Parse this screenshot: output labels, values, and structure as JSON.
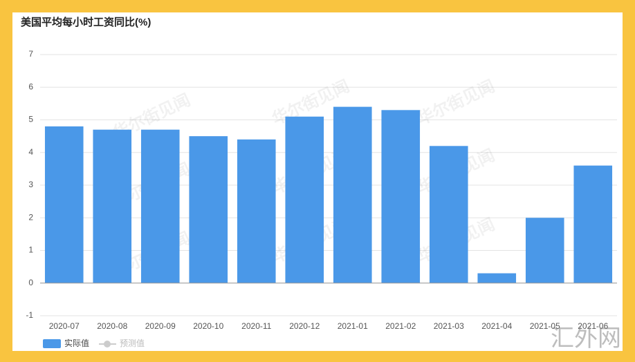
{
  "chart_data": {
    "type": "bar",
    "title": "美国平均每小时工资同比(%)",
    "categories": [
      "2020-07",
      "2020-08",
      "2020-09",
      "2020-10",
      "2020-11",
      "2020-12",
      "2021-01",
      "2021-02",
      "2021-03",
      "2021-04",
      "2021-05",
      "2021-06"
    ],
    "series": [
      {
        "name": "实际值",
        "color": "#4a98e8",
        "values": [
          4.8,
          4.7,
          4.7,
          4.5,
          4.4,
          5.1,
          5.4,
          5.3,
          4.2,
          0.3,
          2.0,
          3.6
        ]
      },
      {
        "name": "预测值",
        "color": "#cccccc",
        "values": [
          null,
          null,
          null,
          null,
          null,
          null,
          null,
          null,
          null,
          null,
          null,
          null
        ]
      }
    ],
    "ylim": [
      -1,
      7
    ],
    "yticks": [
      -1,
      0,
      1,
      2,
      3,
      4,
      5,
      6,
      7
    ],
    "grid": true,
    "watermark": "华尔街见闻",
    "site_watermark": "汇外网"
  }
}
